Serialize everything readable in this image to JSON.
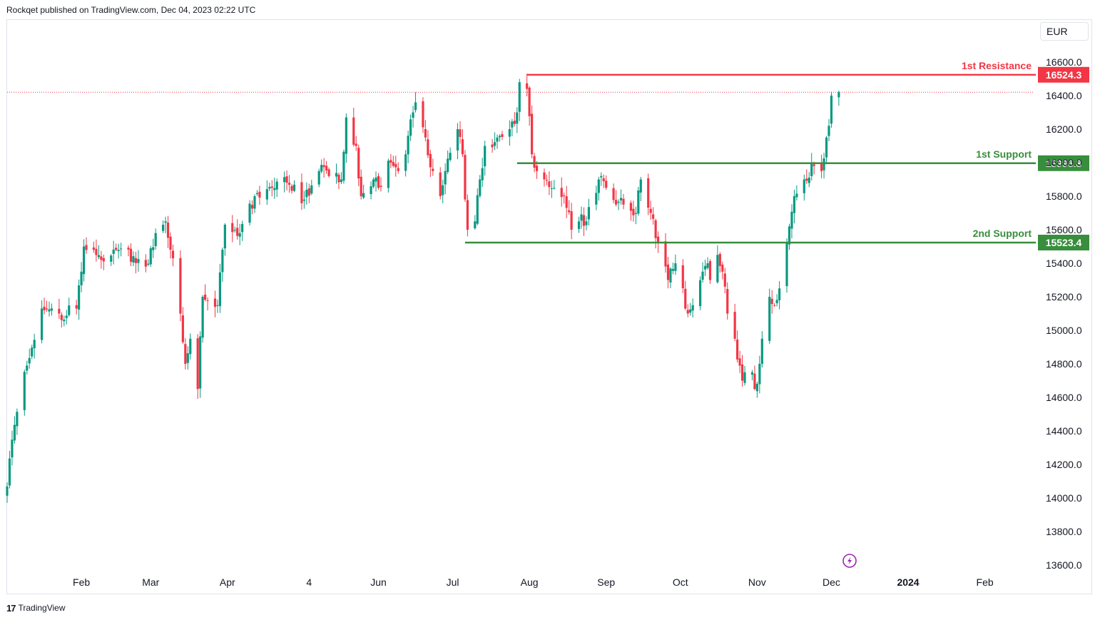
{
  "header": {
    "published": "Rockqet published on TradingView.com, Dec 04, 2023 02:22 UTC"
  },
  "currency_button": "EUR",
  "footer": {
    "brand": "TradingView"
  },
  "icons": {
    "lightning": "lightning-icon",
    "logo": "tradingview-logo-icon"
  },
  "colors": {
    "up": "#089981",
    "down": "#f23645",
    "resistance": "#f23645",
    "support": "#388e3c",
    "last_price_line": "#f23645"
  },
  "chart_data": {
    "type": "candlestick",
    "currency": "EUR",
    "ylim": [
      13500,
      16800
    ],
    "y_ticks": [
      "16600.0",
      "16400.0",
      "16200.0",
      "16000.0",
      "15800.0",
      "15600.0",
      "15400.0",
      "15200.0",
      "15000.0",
      "14800.0",
      "14600.0",
      "14400.0",
      "14200.0",
      "14000.0",
      "13800.0",
      "13600.0"
    ],
    "x_ticks": [
      {
        "label": "Feb",
        "date": "2023-02-01"
      },
      {
        "label": "Mar",
        "date": "2023-03-01"
      },
      {
        "label": "Apr",
        "date": "2023-04-01"
      },
      {
        "label": "4",
        "date": "2023-05-04"
      },
      {
        "label": "Jun",
        "date": "2023-06-01"
      },
      {
        "label": "Jul",
        "date": "2023-07-01"
      },
      {
        "label": "Aug",
        "date": "2023-08-01"
      },
      {
        "label": "Sep",
        "date": "2023-09-01"
      },
      {
        "label": "Oct",
        "date": "2023-10-01"
      },
      {
        "label": "Nov",
        "date": "2023-11-01"
      },
      {
        "label": "Dec",
        "date": "2023-12-01"
      },
      {
        "label": "2024",
        "date": "2024-01-01"
      },
      {
        "label": "Feb",
        "date": "2024-02-01"
      }
    ],
    "x_range": [
      "2023-01-02",
      "2024-02-21"
    ],
    "anchors": [
      {
        "date": "2023-01-02",
        "close": 14069
      },
      {
        "date": "2023-01-05",
        "close": 14436
      },
      {
        "date": "2023-01-10",
        "close": 14790
      },
      {
        "date": "2023-01-16",
        "close": 15130
      },
      {
        "date": "2023-01-23",
        "close": 15100
      },
      {
        "date": "2023-01-30",
        "close": 15130
      },
      {
        "date": "2023-02-02",
        "close": 15500
      },
      {
        "date": "2023-02-09",
        "close": 15420
      },
      {
        "date": "2023-02-16",
        "close": 15480
      },
      {
        "date": "2023-02-27",
        "close": 15380
      },
      {
        "date": "2023-03-03",
        "close": 15580
      },
      {
        "date": "2023-03-07",
        "close": 15650
      },
      {
        "date": "2023-03-10",
        "close": 15430
      },
      {
        "date": "2023-03-13",
        "close": 15100
      },
      {
        "date": "2023-03-15",
        "close": 14800
      },
      {
        "date": "2023-03-17",
        "close": 14950
      },
      {
        "date": "2023-03-20",
        "close": 14650
      },
      {
        "date": "2023-03-22",
        "close": 15200
      },
      {
        "date": "2023-03-28",
        "close": 15150
      },
      {
        "date": "2023-03-31",
        "close": 15630
      },
      {
        "date": "2023-04-06",
        "close": 15580
      },
      {
        "date": "2023-04-12",
        "close": 15800
      },
      {
        "date": "2023-04-19",
        "close": 15850
      },
      {
        "date": "2023-04-25",
        "close": 15880
      },
      {
        "date": "2023-05-02",
        "close": 15780
      },
      {
        "date": "2023-05-08",
        "close": 15950
      },
      {
        "date": "2023-05-12",
        "close": 15920
      },
      {
        "date": "2023-05-17",
        "close": 15900
      },
      {
        "date": "2023-05-19",
        "close": 16270
      },
      {
        "date": "2023-05-23",
        "close": 16100
      },
      {
        "date": "2023-05-25",
        "close": 15800
      },
      {
        "date": "2023-05-30",
        "close": 15900
      },
      {
        "date": "2023-06-01",
        "close": 15850
      },
      {
        "date": "2023-06-06",
        "close": 16000
      },
      {
        "date": "2023-06-09",
        "close": 15950
      },
      {
        "date": "2023-06-12",
        "close": 16050
      },
      {
        "date": "2023-06-15",
        "close": 16300
      },
      {
        "date": "2023-06-16",
        "close": 16360
      },
      {
        "date": "2023-06-20",
        "close": 16150
      },
      {
        "date": "2023-06-23",
        "close": 15950
      },
      {
        "date": "2023-06-26",
        "close": 15800
      },
      {
        "date": "2023-06-28",
        "close": 15950
      },
      {
        "date": "2023-07-03",
        "close": 16200
      },
      {
        "date": "2023-07-05",
        "close": 16050
      },
      {
        "date": "2023-07-07",
        "close": 15600
      },
      {
        "date": "2023-07-10",
        "close": 15650
      },
      {
        "date": "2023-07-12",
        "close": 15900
      },
      {
        "date": "2023-07-14",
        "close": 16100
      },
      {
        "date": "2023-07-19",
        "close": 16150
      },
      {
        "date": "2023-07-24",
        "close": 16200
      },
      {
        "date": "2023-07-27",
        "close": 16300
      },
      {
        "date": "2023-07-28",
        "close": 16480
      },
      {
        "date": "2023-07-31",
        "close": 16440
      },
      {
        "date": "2023-08-02",
        "close": 16050
      },
      {
        "date": "2023-08-04",
        "close": 15950
      },
      {
        "date": "2023-08-07",
        "close": 15900
      },
      {
        "date": "2023-08-11",
        "close": 15850
      },
      {
        "date": "2023-08-15",
        "close": 15800
      },
      {
        "date": "2023-08-18",
        "close": 15600
      },
      {
        "date": "2023-08-21",
        "close": 15650
      },
      {
        "date": "2023-08-24",
        "close": 15650
      },
      {
        "date": "2023-08-29",
        "close": 15900
      },
      {
        "date": "2023-09-01",
        "close": 15850
      },
      {
        "date": "2023-09-05",
        "close": 15750
      },
      {
        "date": "2023-09-08",
        "close": 15750
      },
      {
        "date": "2023-09-13",
        "close": 15700
      },
      {
        "date": "2023-09-15",
        "close": 15900
      },
      {
        "date": "2023-09-19",
        "close": 15700
      },
      {
        "date": "2023-09-21",
        "close": 15550
      },
      {
        "date": "2023-09-26",
        "close": 15300
      },
      {
        "date": "2023-09-29",
        "close": 15400
      },
      {
        "date": "2023-10-04",
        "close": 15100
      },
      {
        "date": "2023-10-06",
        "close": 15150
      },
      {
        "date": "2023-10-10",
        "close": 15350
      },
      {
        "date": "2023-10-12",
        "close": 15400
      },
      {
        "date": "2023-10-13",
        "close": 15300
      },
      {
        "date": "2023-10-16",
        "close": 15450
      },
      {
        "date": "2023-10-18",
        "close": 15350
      },
      {
        "date": "2023-10-20",
        "close": 15100
      },
      {
        "date": "2023-10-23",
        "close": 14950
      },
      {
        "date": "2023-10-26",
        "close": 14700
      },
      {
        "date": "2023-10-27",
        "close": 14750
      },
      {
        "date": "2023-10-30",
        "close": 14750
      },
      {
        "date": "2023-10-31",
        "close": 14650
      },
      {
        "date": "2023-11-02",
        "close": 14800
      },
      {
        "date": "2023-11-03",
        "close": 14950
      },
      {
        "date": "2023-11-06",
        "close": 15200
      },
      {
        "date": "2023-11-08",
        "close": 15150
      },
      {
        "date": "2023-11-10",
        "close": 15250
      },
      {
        "date": "2023-11-14",
        "close": 15620
      },
      {
        "date": "2023-11-16",
        "close": 15800
      },
      {
        "date": "2023-11-20",
        "close": 15900
      },
      {
        "date": "2023-11-24",
        "close": 15980
      },
      {
        "date": "2023-11-27",
        "close": 15950
      },
      {
        "date": "2023-11-29",
        "close": 16150
      },
      {
        "date": "2023-11-30",
        "close": 16220
      },
      {
        "date": "2023-12-01",
        "close": 16400
      },
      {
        "date": "2023-12-04",
        "close": 16420
      }
    ],
    "levels": [
      {
        "name": "1st Resistance",
        "value": 16524.3,
        "label": "16524.3",
        "color": "#f23645",
        "start_date": "2023-07-31"
      },
      {
        "name": "1st Support",
        "value": 15996.8,
        "label": "15996.8",
        "color": "#388e3c",
        "start_date": "2023-07-27"
      },
      {
        "name": "2nd Support",
        "value": 15523.4,
        "label": "15523.4",
        "color": "#388e3c",
        "start_date": "2023-07-06"
      }
    ],
    "last_price": 16420
  }
}
